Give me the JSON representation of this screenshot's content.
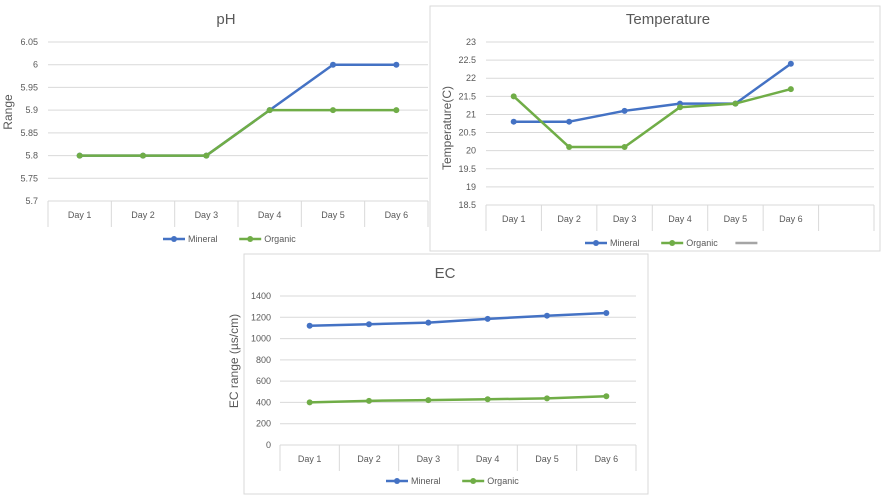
{
  "chart_data": [
    {
      "id": "ph",
      "type": "line",
      "title": "pH",
      "xlabel": "",
      "ylabel": "Range",
      "categories": [
        "Day 1",
        "Day 2",
        "Day 3",
        "Day 4",
        "Day 5",
        "Day 6"
      ],
      "yticks": [
        "5.7",
        "5.75",
        "5.8",
        "5.85",
        "5.9",
        "5.95",
        "6",
        "6.05"
      ],
      "ylim": [
        5.7,
        6.05
      ],
      "grid": true,
      "legend_position": "bottom",
      "series": [
        {
          "name": "Mineral",
          "color": "#4472C4",
          "values": [
            5.8,
            5.8,
            5.8,
            5.9,
            6.0,
            6.0
          ]
        },
        {
          "name": "Organic",
          "color": "#70AD47",
          "values": [
            5.8,
            5.8,
            5.8,
            5.9,
            5.9,
            5.9
          ]
        }
      ]
    },
    {
      "id": "temperature",
      "type": "line",
      "title": "Temperature",
      "xlabel": "",
      "ylabel": "Temperature(C)",
      "categories": [
        "Day 1",
        "Day 2",
        "Day 3",
        "Day 4",
        "Day 5",
        "Day 6"
      ],
      "extra_empty_category": true,
      "yticks": [
        "18.5",
        "19",
        "19.5",
        "20",
        "20.5",
        "21",
        "21.5",
        "22",
        "22.5",
        "23"
      ],
      "ylim": [
        18.5,
        23
      ],
      "grid": true,
      "legend_position": "bottom",
      "legend_extra_gray_entry": true,
      "series": [
        {
          "name": "Mineral",
          "color": "#4472C4",
          "values": [
            20.8,
            20.8,
            21.1,
            21.3,
            21.3,
            22.4
          ]
        },
        {
          "name": "Organic",
          "color": "#70AD47",
          "values": [
            21.5,
            20.1,
            20.1,
            21.2,
            21.3,
            21.7
          ]
        }
      ]
    },
    {
      "id": "ec",
      "type": "line",
      "title": "EC",
      "xlabel": "",
      "ylabel": "EC range (µs/cm)",
      "categories": [
        "Day 1",
        "Day 2",
        "Day 3",
        "Day 4",
        "Day 5",
        "Day 6"
      ],
      "yticks": [
        "0",
        "200",
        "400",
        "600",
        "800",
        "1000",
        "1200",
        "1400"
      ],
      "ylim": [
        0,
        1400
      ],
      "grid": true,
      "legend_position": "bottom",
      "series": [
        {
          "name": "Mineral",
          "color": "#4472C4",
          "values": [
            1120,
            1135,
            1150,
            1185,
            1215,
            1240
          ]
        },
        {
          "name": "Organic",
          "color": "#70AD47",
          "values": [
            400,
            415,
            422,
            430,
            438,
            458
          ]
        }
      ]
    }
  ],
  "colors": {
    "grid": "#d9d9d9",
    "axis_text": "#595959",
    "title_text": "#595959",
    "legend_extra": "#a5a5a5"
  }
}
